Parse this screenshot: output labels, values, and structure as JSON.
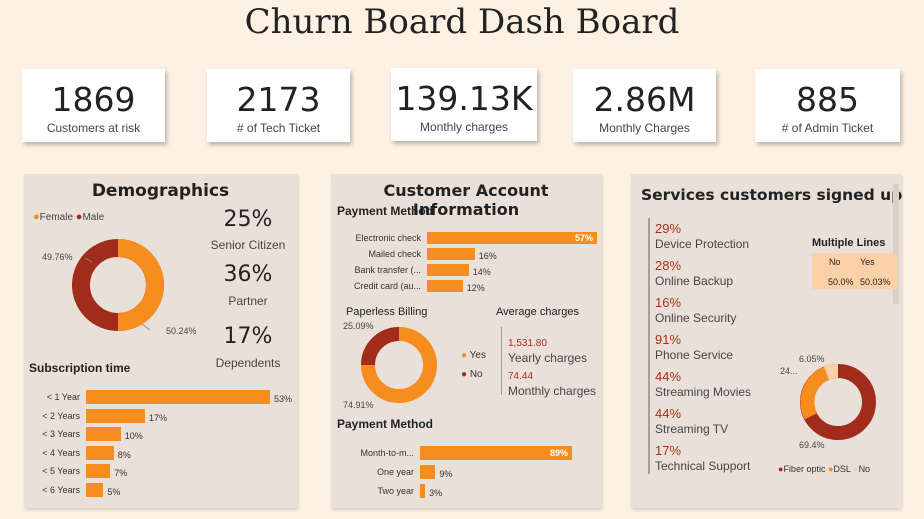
{
  "title": "Churn Board Dash Board",
  "kpis": [
    {
      "value": "1869",
      "label": "Customers at risk"
    },
    {
      "value": "2173",
      "label": "# of Tech Ticket"
    },
    {
      "value": "139.13K",
      "label": "Monthly charges"
    },
    {
      "value": "2.86M",
      "label": "Monthly Charges"
    },
    {
      "value": "885",
      "label": "# of Admin Ticket"
    }
  ],
  "colors": {
    "orange": "#f78c1f",
    "darkred": "#a12c1b",
    "peach": "#fcd1a7"
  },
  "demographics": {
    "title": "Demographics",
    "legend_female": "Female",
    "legend_male": "Male",
    "donut_male_label": "49.76%",
    "donut_female_label": "50.24%",
    "senior_value": "25%",
    "senior_label": "Senior Citizen",
    "partner_value": "36%",
    "partner_label": "Partner",
    "dependents_value": "17%",
    "dependents_label": "Dependents",
    "subscription_title": "Subscription time"
  },
  "account": {
    "title": "Customer Account Information",
    "payment_title": "Payment Method",
    "paperless_title": "Paperless Billing",
    "paperless_no_label": "25.09%",
    "paperless_yes_label": "74.91%",
    "legend_yes": "Yes",
    "legend_no": "No",
    "avg_title": "Average charges",
    "yearly_value": "1,531.80",
    "yearly_label": "Yearly charges",
    "monthly_value": "74.44",
    "monthly_label": "Monthly charges",
    "payment2_title": "Payment Method"
  },
  "services": {
    "title": "Services customers signed up",
    "items": [
      {
        "pct": "29%",
        "name": "Device Protection"
      },
      {
        "pct": "28%",
        "name": "Online Backup"
      },
      {
        "pct": "16%",
        "name": "Online Security"
      },
      {
        "pct": "91%",
        "name": "Phone Service"
      },
      {
        "pct": "44%",
        "name": "Streaming Movies"
      },
      {
        "pct": "44%",
        "name": "Streaming TV"
      },
      {
        "pct": "17%",
        "name": "Technical Support"
      }
    ],
    "multiple_lines": {
      "title": "Multiple Lines",
      "col1": "No",
      "col2": "Yes",
      "val1": "50.0%",
      "val2": "50.03%"
    },
    "internet_labels": {
      "dsl": "24...",
      "no": "6.05%",
      "fiber": "69.4%"
    },
    "legend": [
      "Fiber optic",
      "DSL",
      "No"
    ]
  },
  "chart_data": [
    {
      "type": "pie",
      "title": "Gender",
      "categories": [
        "Female",
        "Male"
      ],
      "values": [
        50.24,
        49.76
      ]
    },
    {
      "type": "bar",
      "title": "Subscription time",
      "categories": [
        "< 1 Year",
        "< 2 Years",
        "< 3 Years",
        "< 4 Years",
        "< 5 Years",
        "< 6 Years"
      ],
      "values": [
        53,
        17,
        10,
        8,
        7,
        5
      ],
      "value_labels": [
        "53%",
        "17%",
        "10%",
        "8%",
        "7%",
        "5%"
      ]
    },
    {
      "type": "bar",
      "title": "Payment Method",
      "categories": [
        "Electronic check",
        "Mailed check",
        "Bank transfer (...",
        "Credit card (au..."
      ],
      "values": [
        57,
        16,
        14,
        12
      ],
      "value_labels": [
        "57%",
        "16%",
        "14%",
        "12%"
      ]
    },
    {
      "type": "pie",
      "title": "Paperless Billing",
      "categories": [
        "Yes",
        "No"
      ],
      "values": [
        74.91,
        25.09
      ]
    },
    {
      "type": "bar",
      "title": "Payment Method",
      "categories": [
        "Month-to-m...",
        "One year",
        "Two year"
      ],
      "values": [
        89,
        9,
        3
      ],
      "value_labels": [
        "89%",
        "9%",
        "3%"
      ]
    },
    {
      "type": "pie",
      "title": "Internet Service",
      "categories": [
        "Fiber optic",
        "DSL",
        "No"
      ],
      "values": [
        69.4,
        24.55,
        6.05
      ]
    }
  ]
}
